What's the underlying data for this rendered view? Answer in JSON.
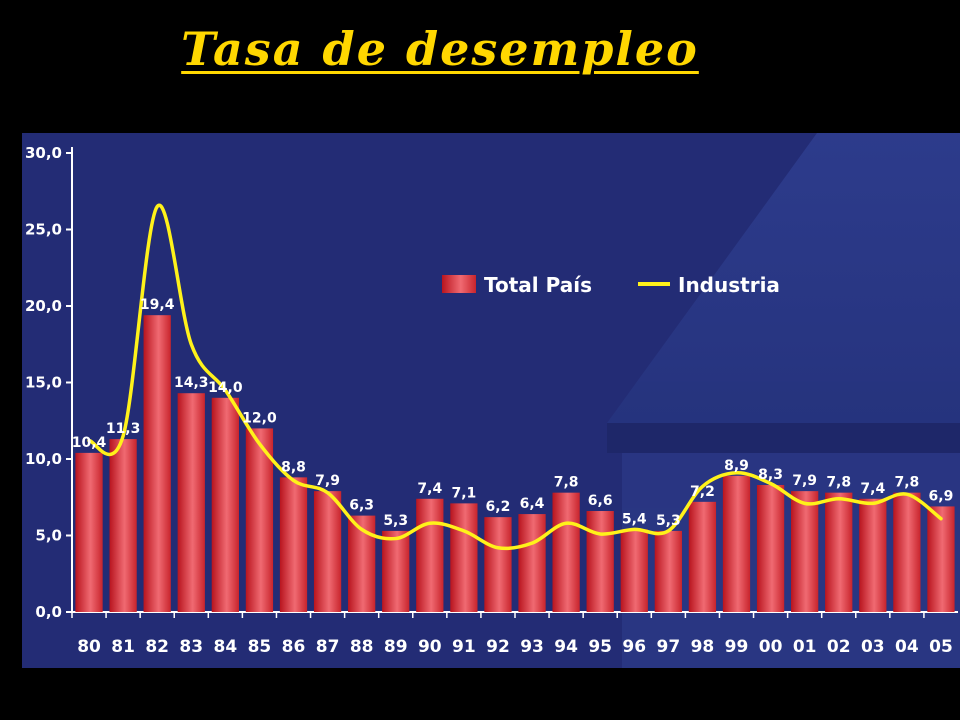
{
  "title": "Tasa de desempleo",
  "colors": {
    "bar": "#E8414B",
    "line": "#FFF21A",
    "panel": "#232C75",
    "title": "#FFD700"
  },
  "chart_data": {
    "type": "bar",
    "title": "",
    "xlabel": "",
    "ylabel": "",
    "ylim": [
      0,
      30
    ],
    "yticks": [
      "0,0",
      "5,0",
      "10,0",
      "15,0",
      "20,0",
      "25,0",
      "30,0"
    ],
    "grid": false,
    "legend": "top-right",
    "categories": [
      "80",
      "81",
      "82",
      "83",
      "84",
      "85",
      "86",
      "87",
      "88",
      "89",
      "90",
      "91",
      "92",
      "93",
      "94",
      "95",
      "96",
      "97",
      "98",
      "99",
      "00",
      "01",
      "02",
      "03",
      "04",
      "05"
    ],
    "series": [
      {
        "name": "Total País",
        "type": "bar",
        "values": [
          10.4,
          11.3,
          19.4,
          14.3,
          14.0,
          12.0,
          8.8,
          7.9,
          6.3,
          5.3,
          7.4,
          7.1,
          6.2,
          6.4,
          7.8,
          6.6,
          5.4,
          5.3,
          7.2,
          8.9,
          8.3,
          7.9,
          7.8,
          7.4,
          7.8,
          6.9
        ],
        "labels": [
          "10,4",
          "11,3",
          "19,4",
          "14,3",
          "14,0",
          "12,0",
          "8,8",
          "7,9",
          "6,3",
          "5,3",
          "7,4",
          "7,1",
          "6,2",
          "6,4",
          "7,8",
          "6,6",
          "5,4",
          "5,3",
          "7,2",
          "8,9",
          "8,3",
          "7,9",
          "7,8",
          "7,4",
          "7,8",
          "6,9"
        ]
      },
      {
        "name": "Industria",
        "type": "line",
        "values": [
          11.2,
          11.5,
          26.5,
          17.5,
          14.5,
          11.0,
          8.6,
          7.8,
          5.4,
          4.8,
          5.8,
          5.3,
          4.2,
          4.5,
          5.8,
          5.1,
          5.4,
          5.3,
          8.2,
          9.1,
          8.4,
          7.1,
          7.4,
          7.1,
          7.7,
          6.1
        ]
      }
    ]
  }
}
